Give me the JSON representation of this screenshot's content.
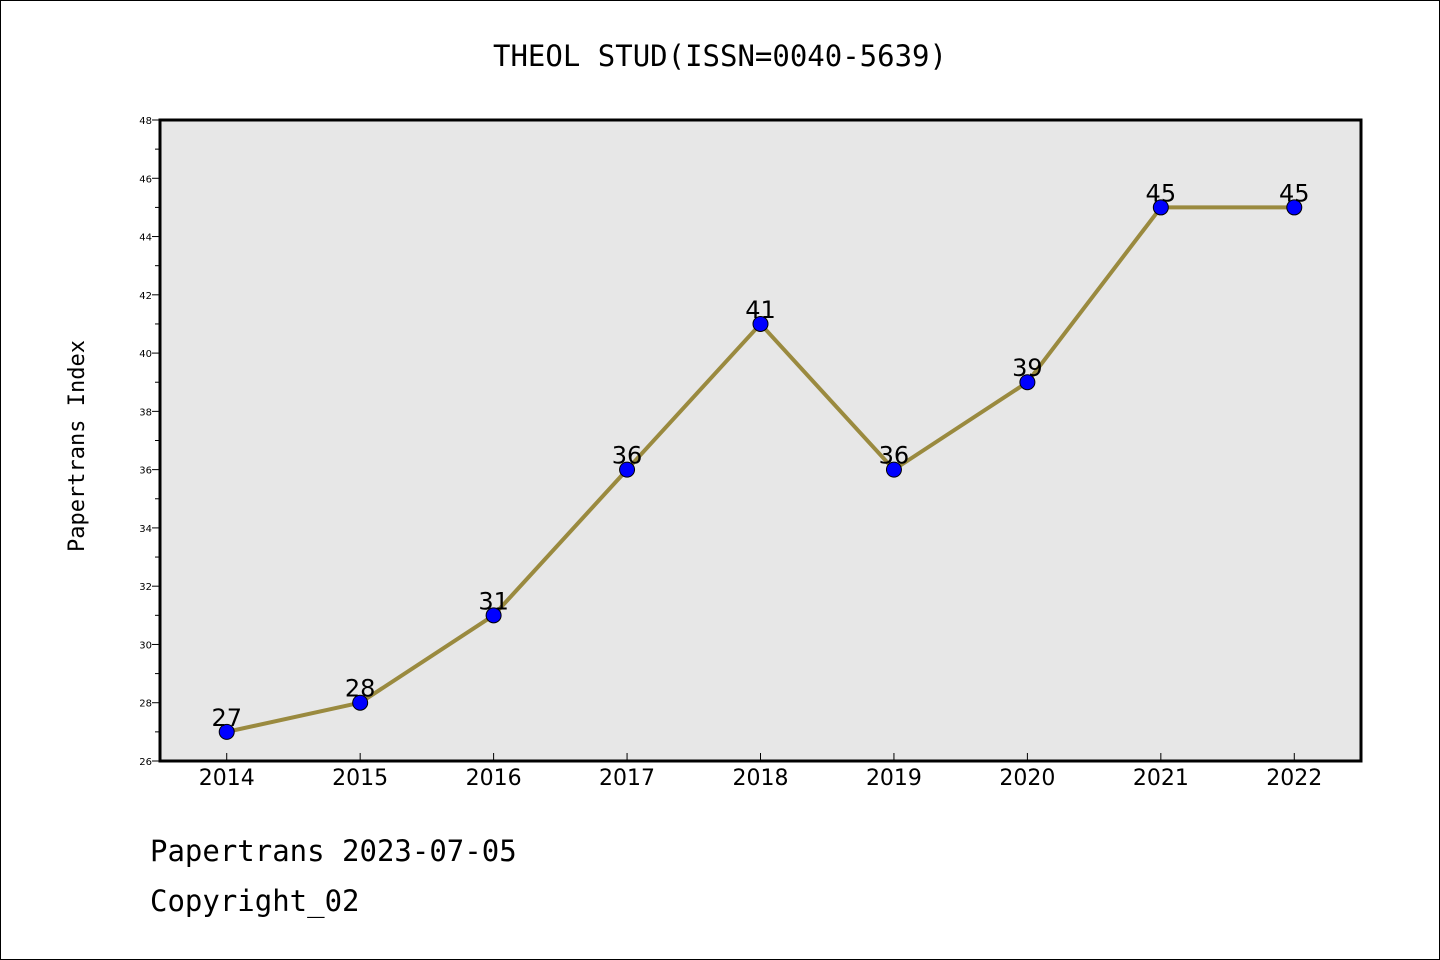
{
  "chart_data": {
    "type": "line",
    "title": "THEOL STUD(ISSN=0040-5639)",
    "xlabel": "",
    "ylabel": "Papertrans Index",
    "categories": [
      "2014",
      "2015",
      "2016",
      "2017",
      "2018",
      "2019",
      "2020",
      "2021",
      "2022"
    ],
    "series": [
      {
        "values": [
          27,
          28,
          31,
          36,
          41,
          36,
          39,
          45,
          45
        ]
      }
    ],
    "ylim": [
      26,
      48
    ],
    "yticks": [
      "26",
      "28",
      "30",
      "32",
      "34",
      "36",
      "38",
      "40",
      "42",
      "44",
      "46",
      "48"
    ],
    "grid": false,
    "data_labels": true,
    "colors": {
      "line": "#9a8a3f",
      "marker": "#0000ff",
      "plot_background": "#e7e7e7"
    }
  },
  "footer": {
    "line1": "Papertrans 2023-07-05",
    "line2": "Copyright_02"
  }
}
